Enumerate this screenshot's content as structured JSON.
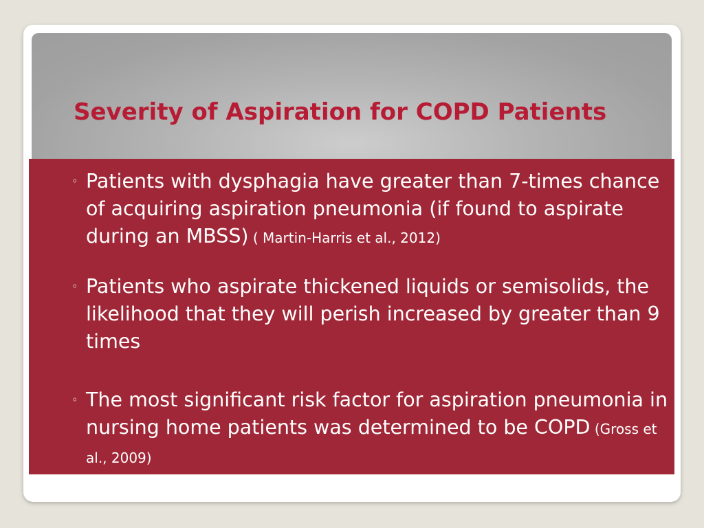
{
  "slide": {
    "title": "Severity of Aspiration for COPD Patients",
    "bullet_marker": "◦",
    "bullets": [
      {
        "text": "Patients with dysphagia have greater than 7-times chance of acquiring aspiration pneumonia (if found to aspirate during an MBSS)",
        "citation": " ( Martin-Harris et al., 2012)"
      },
      {
        "text": "Patients who aspirate thickened liquids or semisolids, the likelihood that they will perish increased by greater than 9 times",
        "citation": ""
      },
      {
        "text": "The most significant risk factor for aspiration pneumonia in nursing home patients was determined to be COPD",
        "citation": " (Gross et al., 2009)"
      }
    ]
  },
  "colors": {
    "background": "#e6e4da",
    "title_text": "#b71c35",
    "content_panel": "#a02737",
    "body_text": "#ffffff"
  }
}
